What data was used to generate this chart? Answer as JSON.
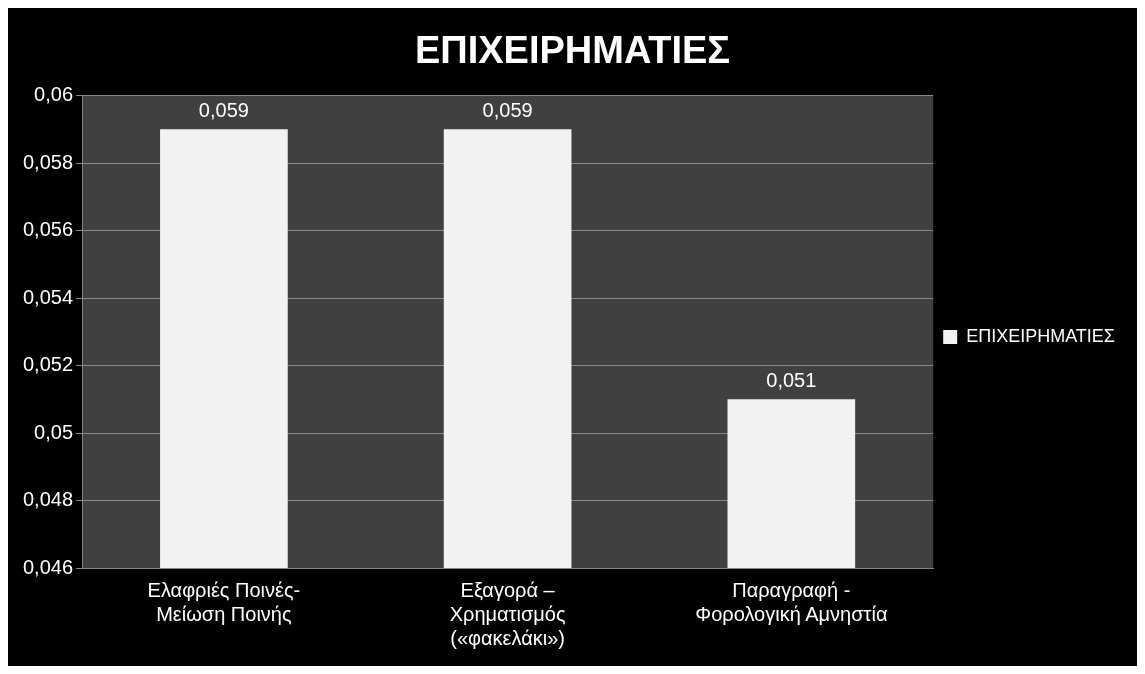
{
  "chart_data": {
    "type": "bar",
    "title": "ΕΠΙΧΕΙΡΗΜΑΤΙΕΣ",
    "categories": [
      "Ελαφριές Ποινές-\nΜείωση Ποινής",
      "Εξαγορά –\nΧρηματισμός\n(«φακελάκι»)",
      "Παραγραφή -\nΦορολογική Αμνηστία"
    ],
    "series": [
      {
        "name": "ΕΠΙΧΕΙΡΗΜΑΤΙΕΣ",
        "color": "#f2f2f2",
        "values": [
          0.059,
          0.059,
          0.051
        ],
        "value_labels": [
          "0,059",
          "0,059",
          "0,051"
        ]
      }
    ],
    "ylim": [
      0.046,
      0.06
    ],
    "yticks": [
      {
        "value": 0.046,
        "label": "0,046"
      },
      {
        "value": 0.048,
        "label": "0,048"
      },
      {
        "value": 0.05,
        "label": "0,05"
      },
      {
        "value": 0.052,
        "label": "0,052"
      },
      {
        "value": 0.054,
        "label": "0,054"
      },
      {
        "value": 0.056,
        "label": "0,056"
      },
      {
        "value": 0.058,
        "label": "0,058"
      },
      {
        "value": 0.06,
        "label": "0,06"
      }
    ],
    "grid": "y",
    "legend": "right"
  }
}
